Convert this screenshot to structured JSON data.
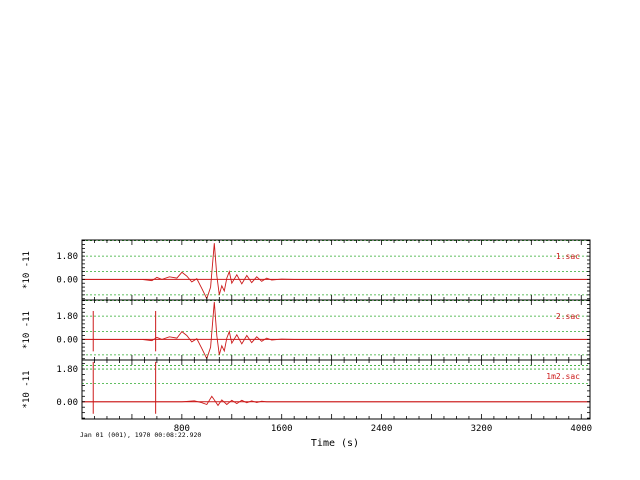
{
  "chart_data": {
    "type": "line",
    "xlabel": "Time (s)",
    "xlim": [
      0,
      4070
    ],
    "xticks": [
      800,
      1600,
      2400,
      3200,
      4000
    ],
    "grid": true,
    "start_time": "Jan 01 (001), 1970 00:08:22.920",
    "style": {
      "frame_color": "#000000",
      "grid_color": "#2eaa2e",
      "trace_color": "#cc1a1a",
      "baseline_color": "#cc1a1a",
      "label_color": "#cc1a1a"
    },
    "panels": [
      {
        "name": "1.sac",
        "ylabel": "*10 -11",
        "yticks": [
          1.8,
          0.0
        ],
        "yticklabels": [
          "1.80",
          "0.00"
        ],
        "ylim": [
          -1.6,
          3.05
        ],
        "grid_levels": [
          3.0,
          1.8,
          0.6,
          -1.2
        ],
        "spikes": [],
        "series": [
          {
            "name": "1.sac",
            "x": [
              0,
              480,
              560,
              600,
              640,
              700,
              760,
              800,
              840,
              880,
              920,
              960,
              1000,
              1030,
              1060,
              1080,
              1100,
              1120,
              1140,
              1160,
              1180,
              1200,
              1240,
              1280,
              1320,
              1360,
              1400,
              1440,
              1480,
              1520,
              1600,
              1700,
              1800,
              2000,
              2100,
              4070
            ],
            "y": [
              0,
              0,
              -0.1,
              0.15,
              0.0,
              0.2,
              0.1,
              0.55,
              0.25,
              -0.2,
              0.05,
              -0.7,
              -1.5,
              -0.6,
              2.8,
              0.3,
              -1.2,
              -0.5,
              -0.9,
              0.1,
              0.6,
              -0.3,
              0.35,
              -0.35,
              0.3,
              -0.25,
              0.2,
              -0.15,
              0.1,
              -0.05,
              0.02,
              0,
              0,
              0,
              0,
              0
            ]
          }
        ]
      },
      {
        "name": "2.sac",
        "ylabel": "*10 -11",
        "yticks": [
          1.8,
          0.0
        ],
        "yticklabels": [
          "1.80",
          "0.00"
        ],
        "ylim": [
          -1.6,
          3.05
        ],
        "grid_levels": [
          3.0,
          1.8,
          0.6,
          -1.2
        ],
        "spikes": [
          {
            "x": 90,
            "top": 2.2
          },
          {
            "x": 590,
            "top": 2.2
          }
        ],
        "series": [
          {
            "name": "2.sac",
            "x": [
              0,
              480,
              560,
              600,
              640,
              700,
              760,
              800,
              840,
              880,
              920,
              960,
              1000,
              1030,
              1060,
              1080,
              1100,
              1120,
              1140,
              1160,
              1180,
              1200,
              1240,
              1280,
              1320,
              1360,
              1400,
              1440,
              1480,
              1520,
              1600,
              1700,
              1800,
              2000,
              2100,
              4070
            ],
            "y": [
              0,
              0,
              -0.1,
              0.15,
              0.0,
              0.2,
              0.1,
              0.6,
              0.3,
              -0.2,
              0.05,
              -0.7,
              -1.5,
              -0.6,
              2.9,
              0.3,
              -1.2,
              -0.5,
              -0.9,
              0.1,
              0.6,
              -0.3,
              0.35,
              -0.35,
              0.3,
              -0.25,
              0.2,
              -0.15,
              0.1,
              -0.05,
              0.02,
              0,
              0,
              0,
              0,
              0
            ]
          }
        ]
      },
      {
        "name": "1m2.sac",
        "ylabel": "*10 -11",
        "yticks": [
          1.8,
          0.0
        ],
        "yticklabels": [
          "1.80",
          "0.00"
        ],
        "ylim": [
          -0.95,
          2.3
        ],
        "grid_levels": [
          2.0,
          1.8,
          1.0
        ],
        "spikes": [
          {
            "x": 90,
            "top": 2.2
          },
          {
            "x": 590,
            "top": 2.2
          }
        ],
        "series": [
          {
            "name": "1m2.sac",
            "x": [
              0,
              800,
              900,
              960,
              1000,
              1040,
              1060,
              1090,
              1120,
              1160,
              1200,
              1240,
              1280,
              1320,
              1360,
              1400,
              1440,
              1480,
              1500,
              4070
            ],
            "y": [
              0,
              0,
              0.05,
              -0.05,
              -0.15,
              0.3,
              0.1,
              -0.2,
              0.1,
              -0.15,
              0.08,
              -0.1,
              0.08,
              -0.06,
              0.05,
              -0.04,
              0.03,
              0,
              0,
              0
            ]
          }
        ]
      }
    ]
  }
}
